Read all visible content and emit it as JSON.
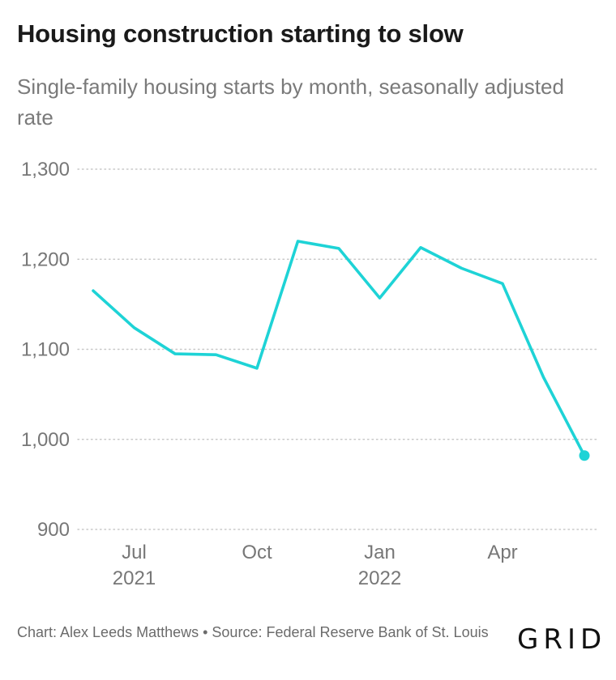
{
  "chart_data": {
    "type": "line",
    "title": "Housing construction starting to slow",
    "subtitle": "Single-family housing starts by month, seasonally adjusted rate",
    "series": [
      {
        "x": [
          "2021-06",
          "2021-07",
          "2021-08",
          "2021-09",
          "2021-10",
          "2021-11",
          "2021-12",
          "2022-01",
          "2022-02",
          "2022-03",
          "2022-04",
          "2022-05",
          "2022-06"
        ],
        "values": [
          1165,
          1124,
          1095,
          1094,
          1079,
          1220,
          1212,
          1157,
          1213,
          1190,
          1173,
          1069,
          982
        ]
      }
    ],
    "ylim": [
      900,
      1300
    ],
    "y_ticks": [
      "1,300",
      "1,200",
      "1,100",
      "1,000",
      "900"
    ],
    "x_ticks": [
      {
        "label": "Jul",
        "sub": "2021",
        "x": "2021-07"
      },
      {
        "label": "Oct",
        "sub": "",
        "x": "2021-10"
      },
      {
        "label": "Jan",
        "sub": "2022",
        "x": "2022-01"
      },
      {
        "label": "Apr",
        "sub": "",
        "x": "2022-04"
      }
    ],
    "grid": true,
    "line_color": "#1ed3d6",
    "end_marker": true
  },
  "footer": {
    "credit": "Chart: Alex Leeds Matthews • Source: Federal Reserve Bank of St. Louis",
    "logo": "GRID"
  }
}
